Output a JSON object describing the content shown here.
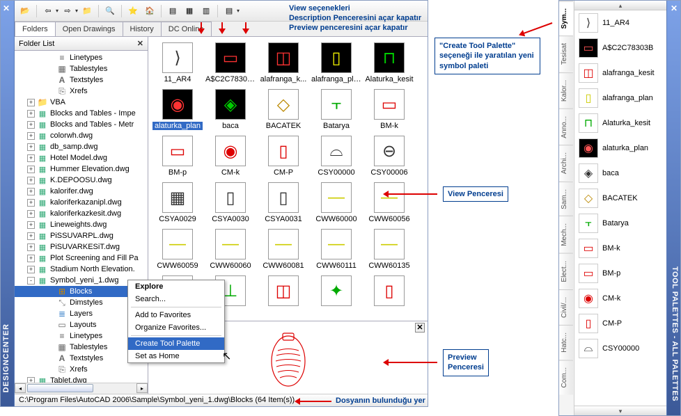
{
  "designcenter": {
    "title": "DESIGNCENTER",
    "toolbar": {
      "view_label": "View seçenekleri",
      "desc_label": "Description Penceresini açar kapatır",
      "preview_label": "Preview penceresini açar kapatır"
    },
    "tabs": [
      "Folders",
      "Open Drawings",
      "History",
      "DC Online"
    ],
    "active_tab": 0,
    "folder_header": "Folder List",
    "tree_top": [
      {
        "icon": "line",
        "label": "Linetypes"
      },
      {
        "icon": "table",
        "label": "Tablestyles"
      },
      {
        "icon": "text",
        "label": "Textstyles"
      },
      {
        "icon": "xref",
        "label": "Xrefs"
      }
    ],
    "tree_items": [
      {
        "exp": "+",
        "icon": "folder",
        "label": "VBA"
      },
      {
        "exp": "+",
        "icon": "dwg",
        "label": "Blocks and Tables - Impe"
      },
      {
        "exp": "+",
        "icon": "dwg",
        "label": "Blocks and Tables - Metr"
      },
      {
        "exp": "+",
        "icon": "dwg",
        "label": "colorwh.dwg"
      },
      {
        "exp": "+",
        "icon": "dwg",
        "label": "db_samp.dwg"
      },
      {
        "exp": "+",
        "icon": "dwg",
        "label": "Hotel Model.dwg"
      },
      {
        "exp": "+",
        "icon": "dwg",
        "label": "Hummer Elevation.dwg"
      },
      {
        "exp": "+",
        "icon": "dwg",
        "label": "K.DEPOOSU.dwg"
      },
      {
        "exp": "+",
        "icon": "dwg",
        "label": "kalorifer.dwg"
      },
      {
        "exp": "+",
        "icon": "dwg",
        "label": "kaloriferkazanipl.dwg"
      },
      {
        "exp": "+",
        "icon": "dwg",
        "label": "kaloriferkazkesit.dwg"
      },
      {
        "exp": "+",
        "icon": "dwg",
        "label": "Lineweights.dwg"
      },
      {
        "exp": "+",
        "icon": "dwg",
        "label": "PiSSUVARPL.dwg"
      },
      {
        "exp": "+",
        "icon": "dwg",
        "label": "PiSUVARKESiT.dwg"
      },
      {
        "exp": "+",
        "icon": "dwg",
        "label": "Plot Screening and Fill Pa"
      },
      {
        "exp": "+",
        "icon": "dwg",
        "label": "Stadium North Elevation."
      },
      {
        "exp": "-",
        "icon": "dwg",
        "label": "Symbol_yeni_1.dwg"
      }
    ],
    "tree_sub": [
      {
        "icon": "blocks",
        "label": "Blocks",
        "selected": true
      },
      {
        "icon": "dim",
        "label": "Dimstyles"
      },
      {
        "icon": "layers",
        "label": "Layers"
      },
      {
        "icon": "layout",
        "label": "Layouts"
      },
      {
        "icon": "line",
        "label": "Linetypes"
      },
      {
        "icon": "table",
        "label": "Tablestyles"
      },
      {
        "icon": "text",
        "label": "Textstyles"
      },
      {
        "icon": "xref",
        "label": "Xrefs"
      }
    ],
    "tree_after": [
      {
        "exp": "+",
        "icon": "dwg",
        "label": "Tablet.dwg"
      }
    ],
    "grid_rows": [
      [
        {
          "label": "11_AR4",
          "dark": false,
          "glyph": "⟩"
        },
        {
          "label": "A$C2C78303B",
          "dark": true,
          "glyph": "▭",
          "color": "#f33"
        },
        {
          "label": "alafranga_k...",
          "dark": true,
          "glyph": "◫",
          "color": "#f33"
        },
        {
          "label": "alafranga_plan",
          "dark": true,
          "glyph": "▯",
          "color": "#ee0"
        },
        {
          "label": "Alaturka_kesit",
          "dark": true,
          "glyph": "⊓",
          "color": "#0c0"
        }
      ],
      [
        {
          "label": "alaturka_plan",
          "dark": true,
          "glyph": "◉",
          "color": "#f33",
          "selected": true
        },
        {
          "label": "baca",
          "dark": true,
          "glyph": "◈",
          "color": "#0c0"
        },
        {
          "label": "BACATEK",
          "dark": false,
          "glyph": "◇",
          "color": "#b80"
        },
        {
          "label": "Batarya",
          "dark": false,
          "glyph": "⫟",
          "color": "#0a0"
        },
        {
          "label": "BM-k",
          "dark": false,
          "glyph": "▭",
          "color": "#d00"
        }
      ],
      [
        {
          "label": "BM-p",
          "dark": false,
          "glyph": "▭",
          "color": "#d00"
        },
        {
          "label": "CM-k",
          "dark": false,
          "glyph": "◉",
          "color": "#d00"
        },
        {
          "label": "CM-P",
          "dark": false,
          "glyph": "▯",
          "color": "#d00"
        },
        {
          "label": "CSY00000",
          "dark": false,
          "glyph": "⌓",
          "color": "#333"
        },
        {
          "label": "CSY00006",
          "dark": false,
          "glyph": "⊖",
          "color": "#333"
        }
      ],
      [
        {
          "label": "CSYA0029",
          "dark": false,
          "glyph": "▦",
          "color": "#333"
        },
        {
          "label": "CSYA0030",
          "dark": false,
          "glyph": "▯",
          "color": "#333"
        },
        {
          "label": "CSYA0031",
          "dark": false,
          "glyph": "▯",
          "color": "#333"
        },
        {
          "label": "CWW60000",
          "dark": false,
          "glyph": "—",
          "color": "#cc0"
        },
        {
          "label": "CWW60056",
          "dark": false,
          "glyph": "—",
          "color": "#cc0"
        }
      ],
      [
        {
          "label": "CWW60059",
          "dark": false,
          "glyph": "—",
          "color": "#cc0"
        },
        {
          "label": "CWW60060",
          "dark": false,
          "glyph": "—",
          "color": "#cc0"
        },
        {
          "label": "CWW60081",
          "dark": false,
          "glyph": "—",
          "color": "#cc0"
        },
        {
          "label": "CWW60111",
          "dark": false,
          "glyph": "—",
          "color": "#cc0"
        },
        {
          "label": "CWW60135",
          "dark": false,
          "glyph": "—",
          "color": "#cc0"
        }
      ],
      [
        {
          "label": "",
          "dark": false,
          "glyph": "◇",
          "color": "#d00"
        },
        {
          "label": "",
          "dark": false,
          "glyph": "⊥",
          "color": "#0a0"
        },
        {
          "label": "",
          "dark": false,
          "glyph": "◫",
          "color": "#d00"
        },
        {
          "label": "",
          "dark": false,
          "glyph": "✦",
          "color": "#0a0"
        },
        {
          "label": "",
          "dark": false,
          "glyph": "▯",
          "color": "#d00"
        }
      ]
    ],
    "status": "C:\\Program Files\\AutoCAD 2006\\Sample\\Symbol_yeni_1.dwg\\Blocks (64 Item(s))",
    "context_menu": {
      "items": [
        {
          "label": "Explore",
          "bold": true
        },
        {
          "label": "Search..."
        },
        {
          "sep": true
        },
        {
          "label": "Add to Favorites"
        },
        {
          "label": "Organize Favorites..."
        },
        {
          "sep": true
        },
        {
          "label": "Create Tool Palette",
          "hover": true
        },
        {
          "label": "Set as Home"
        }
      ]
    }
  },
  "annotations": {
    "view_penceresi": "View Penceresi",
    "preview_penceresi": "Preview\nPenceresi",
    "dosya": "Dosyanın bulunduğu yer",
    "create_tp": "\"Create Tool Palette\" seçeneği ile yaratılan yeni symbol paleti"
  },
  "toolpalettes": {
    "title": "TOOL PALETTES - ALL PALETTES",
    "tabs": [
      "Sym...",
      "Tesisat",
      "Kalor...",
      "Anno...",
      "Archi...",
      "Sam...",
      "Mech...",
      "Elect...",
      "Civil/...",
      "Hatc...",
      "Com..."
    ],
    "active_tab": 0,
    "items": [
      {
        "label": "11_AR4",
        "glyph": "⟩",
        "dark": false
      },
      {
        "label": "A$C2C78303B",
        "glyph": "▭",
        "dark": true,
        "color": "#f55"
      },
      {
        "label": "alafranga_kesit",
        "glyph": "◫",
        "dark": false,
        "color": "#d00"
      },
      {
        "label": "alafranga_plan",
        "glyph": "▯",
        "dark": false,
        "color": "#cc0"
      },
      {
        "label": "Alaturka_kesit",
        "glyph": "⊓",
        "dark": false,
        "color": "#0a0"
      },
      {
        "label": "alaturka_plan",
        "glyph": "◉",
        "dark": true,
        "color": "#f55"
      },
      {
        "label": "baca",
        "glyph": "◈",
        "dark": false,
        "color": "#333"
      },
      {
        "label": "BACATEK",
        "glyph": "◇",
        "dark": false,
        "color": "#b80"
      },
      {
        "label": "Batarya",
        "glyph": "⫟",
        "dark": false,
        "color": "#0a0"
      },
      {
        "label": "BM-k",
        "glyph": "▭",
        "dark": false,
        "color": "#d00"
      },
      {
        "label": "BM-p",
        "glyph": "▭",
        "dark": false,
        "color": "#d00"
      },
      {
        "label": "CM-k",
        "glyph": "◉",
        "dark": false,
        "color": "#d00"
      },
      {
        "label": "CM-P",
        "glyph": "▯",
        "dark": false,
        "color": "#d00"
      },
      {
        "label": "CSY00000",
        "glyph": "⌓",
        "dark": false,
        "color": "#333"
      }
    ]
  },
  "colors": {
    "titlebar_top": "#7da2e8",
    "titlebar_bottom": "#3b5998",
    "selection": "#316ac5",
    "annot": "#003d8f",
    "arrow": "#d00"
  }
}
